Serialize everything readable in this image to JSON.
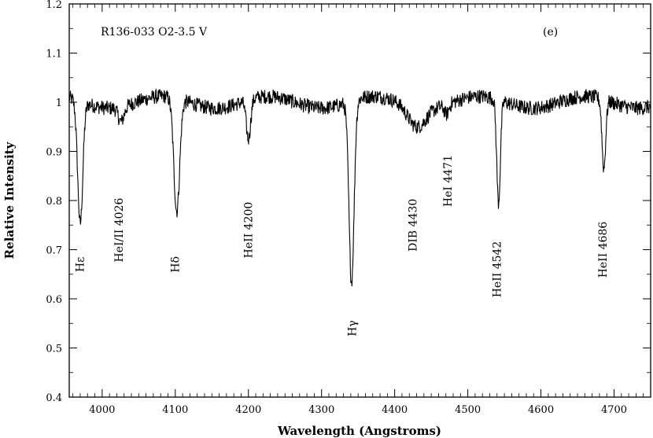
{
  "chart_data": {
    "type": "line",
    "title": "R136-033 O2-3.5 V",
    "panel_label": "(e)",
    "xlabel": "Wavelength (Angstroms)",
    "ylabel": "Relative Intensity",
    "xlim": [
      3955,
      4750
    ],
    "ylim": [
      0.4,
      1.2
    ],
    "x_ticks": [
      {
        "value": 4000,
        "label": "4000"
      },
      {
        "value": 4100,
        "label": "4100"
      },
      {
        "value": 4200,
        "label": "4200"
      },
      {
        "value": 4300,
        "label": "4300"
      },
      {
        "value": 4400,
        "label": "4400"
      },
      {
        "value": 4500,
        "label": "4500"
      },
      {
        "value": 4600,
        "label": "4600"
      },
      {
        "value": 4700,
        "label": "4700"
      }
    ],
    "y_ticks": [
      {
        "value": 0.4,
        "label": "0.4"
      },
      {
        "value": 0.5,
        "label": "0.5"
      },
      {
        "value": 0.6,
        "label": "0.6"
      },
      {
        "value": 0.7,
        "label": "0.7"
      },
      {
        "value": 0.8,
        "label": "0.8"
      },
      {
        "value": 0.9,
        "label": "0.9"
      },
      {
        "value": 1.0,
        "label": "1"
      },
      {
        "value": 1.1,
        "label": "1.1"
      },
      {
        "value": 1.2,
        "label": "1.2"
      }
    ],
    "continuum": 1.0,
    "absorption_lines": [
      {
        "center": 3970,
        "depth": 0.25,
        "width": 3.5
      },
      {
        "center": 4026,
        "depth": 0.03,
        "width": 4
      },
      {
        "center": 4102,
        "depth": 0.23,
        "width": 4
      },
      {
        "center": 4200,
        "depth": 0.08,
        "width": 3
      },
      {
        "center": 4341,
        "depth": 0.37,
        "width": 3.5
      },
      {
        "center": 4430,
        "depth": 0.04,
        "width": 12
      },
      {
        "center": 4471,
        "depth": 0.02,
        "width": 3
      },
      {
        "center": 4542,
        "depth": 0.21,
        "width": 2.5
      },
      {
        "center": 4686,
        "depth": 0.14,
        "width": 2.5
      }
    ],
    "line_labels": [
      {
        "text": "Hε",
        "wavelength": 3975,
        "y": 0.67
      },
      {
        "text": "HeI/II 4026",
        "wavelength": 4028,
        "y": 0.74
      },
      {
        "text": "Hδ",
        "wavelength": 4105,
        "y": 0.67
      },
      {
        "text": "HeII 4200",
        "wavelength": 4205,
        "y": 0.74
      },
      {
        "text": "Hγ",
        "wavelength": 4347,
        "y": 0.54
      },
      {
        "text": "DIB 4430",
        "wavelength": 4430,
        "y": 0.75
      },
      {
        "text": "HeI 4471",
        "wavelength": 4478,
        "y": 0.84
      },
      {
        "text": "HeII 4542",
        "wavelength": 4545,
        "y": 0.66
      },
      {
        "text": "HeII 4686",
        "wavelength": 4690,
        "y": 0.7
      }
    ]
  }
}
